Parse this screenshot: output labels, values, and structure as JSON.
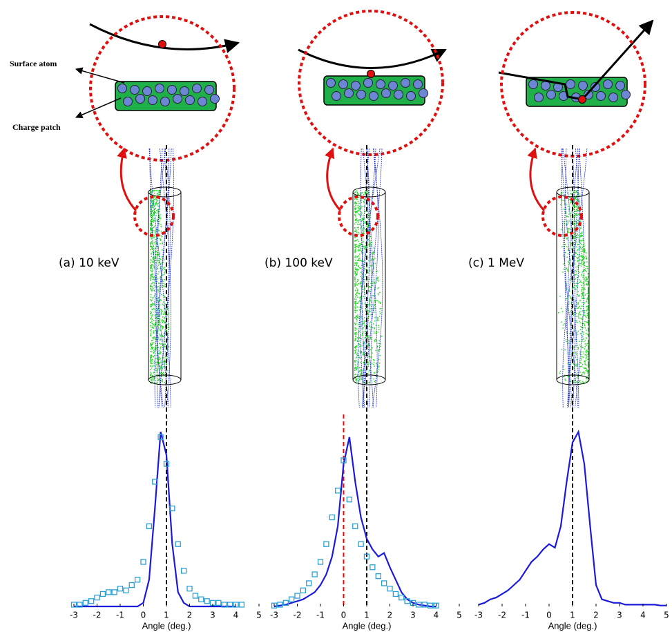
{
  "chart_data": [
    {
      "type": "line",
      "title": "(a) 10 keV",
      "annotations": [
        "Surface atom",
        "Charge patch"
      ],
      "xlabel": "Angle (deg.)",
      "xlim": [
        -3,
        5
      ],
      "xticks": [
        -3,
        -2,
        -1,
        0,
        1,
        2,
        3,
        4,
        5
      ],
      "ylim": [
        0,
        1
      ],
      "vlines": [
        {
          "x": 1,
          "color": "#000000"
        }
      ],
      "series": [
        {
          "color": "#1a1adc",
          "marker": "none",
          "x": [
            -3,
            -2.75,
            -2.5,
            -2.25,
            -2,
            -1.75,
            -1.5,
            -1.25,
            -1,
            -0.75,
            -0.5,
            -0.25,
            0,
            0.25,
            0.5,
            0.75,
            1,
            1.25,
            1.5,
            1.75,
            2,
            2.25,
            2.5,
            2.75,
            3,
            3.25,
            3.5,
            3.75,
            4
          ],
          "values": [
            0,
            0,
            0,
            0,
            0,
            0,
            0,
            0,
            0,
            0,
            0,
            0,
            0.02,
            0.15,
            0.55,
            0.98,
            0.85,
            0.35,
            0.08,
            0.02,
            0,
            0,
            0,
            0,
            0,
            0,
            0,
            0,
            0
          ]
        },
        {
          "color": "#2a9fd6",
          "marker": "square",
          "x": [
            -3,
            -2.75,
            -2.5,
            -2.25,
            -2,
            -1.75,
            -1.5,
            -1.25,
            -1,
            -0.75,
            -0.5,
            -0.25,
            0,
            0.25,
            0.5,
            0.75,
            1,
            1.25,
            1.5,
            1.75,
            2,
            2.25,
            2.5,
            2.75,
            3,
            3.25,
            3.5,
            3.75,
            4,
            4.25
          ],
          "values": [
            0.01,
            0.01,
            0.02,
            0.03,
            0.05,
            0.07,
            0.08,
            0.08,
            0.1,
            0.09,
            0.12,
            0.15,
            0.25,
            0.45,
            0.7,
            0.95,
            0.8,
            0.55,
            0.35,
            0.2,
            0.1,
            0.06,
            0.04,
            0.03,
            0.02,
            0.02,
            0.01,
            0.01,
            0.01,
            0.01
          ]
        }
      ]
    },
    {
      "type": "line",
      "title": "(b) 100 keV",
      "xlabel": "Angle (deg.)",
      "xlim": [
        -3,
        5
      ],
      "xticks": [
        -3,
        -2,
        -1,
        0,
        1,
        2,
        3,
        4,
        5
      ],
      "ylim": [
        0,
        1
      ],
      "vlines": [
        {
          "x": 1,
          "color": "#000000"
        },
        {
          "x": 0,
          "color": "#ff0000"
        }
      ],
      "series": [
        {
          "color": "#1a1adc",
          "marker": "none",
          "x": [
            -3,
            -2.75,
            -2.5,
            -2.25,
            -2,
            -1.75,
            -1.5,
            -1.25,
            -1,
            -0.75,
            -0.5,
            -0.25,
            0,
            0.25,
            0.5,
            0.75,
            1,
            1.25,
            1.5,
            1.75,
            2,
            2.25,
            2.5,
            2.75,
            3,
            3.25,
            3.5,
            3.75,
            4
          ],
          "values": [
            0,
            0.005,
            0.01,
            0.02,
            0.03,
            0.04,
            0.06,
            0.08,
            0.12,
            0.18,
            0.28,
            0.45,
            0.8,
            0.95,
            0.7,
            0.5,
            0.38,
            0.32,
            0.28,
            0.3,
            0.22,
            0.15,
            0.08,
            0.04,
            0.02,
            0.01,
            0.005,
            0,
            0
          ]
        },
        {
          "color": "#2a9fd6",
          "marker": "square",
          "x": [
            -3,
            -2.75,
            -2.5,
            -2.25,
            -2,
            -1.75,
            -1.5,
            -1.25,
            -1,
            -0.75,
            -0.5,
            -0.25,
            0,
            0.25,
            0.5,
            0.75,
            1,
            1.25,
            1.5,
            1.75,
            2,
            2.25,
            2.5,
            2.75,
            3,
            3.25,
            3.5,
            3.75,
            4
          ],
          "values": [
            0.005,
            0.01,
            0.02,
            0.04,
            0.06,
            0.09,
            0.13,
            0.18,
            0.25,
            0.35,
            0.5,
            0.65,
            0.82,
            0.6,
            0.45,
            0.35,
            0.28,
            0.22,
            0.17,
            0.13,
            0.1,
            0.07,
            0.05,
            0.03,
            0.02,
            0.01,
            0.01,
            0.005,
            0.005
          ]
        }
      ]
    },
    {
      "type": "line",
      "title": "(c) 1 MeV",
      "xlabel": "Angle (deg.)",
      "xlim": [
        -3,
        5
      ],
      "xticks": [
        -3,
        -2,
        -1,
        0,
        1,
        2,
        3,
        4,
        5
      ],
      "ylim": [
        0,
        1
      ],
      "vlines": [
        {
          "x": 1,
          "color": "#000000"
        }
      ],
      "series": [
        {
          "color": "#1a1adc",
          "marker": "none",
          "x": [
            -3,
            -2.75,
            -2.5,
            -2.25,
            -2,
            -1.75,
            -1.5,
            -1.25,
            -1,
            -0.75,
            -0.5,
            -0.25,
            0,
            0.25,
            0.5,
            0.75,
            1,
            1.25,
            1.5,
            1.75,
            2,
            2.25,
            2.5,
            2.75,
            3,
            3.25,
            3.5,
            3.75,
            4,
            4.25,
            4.5,
            4.75,
            5
          ],
          "values": [
            0.01,
            0.02,
            0.04,
            0.05,
            0.07,
            0.09,
            0.12,
            0.15,
            0.2,
            0.25,
            0.28,
            0.32,
            0.35,
            0.33,
            0.45,
            0.7,
            0.92,
            0.98,
            0.8,
            0.45,
            0.12,
            0.04,
            0.03,
            0.02,
            0.02,
            0.01,
            0.01,
            0.01,
            0.01,
            0.01,
            0.01,
            0.005,
            0.005
          ]
        }
      ]
    }
  ]
}
